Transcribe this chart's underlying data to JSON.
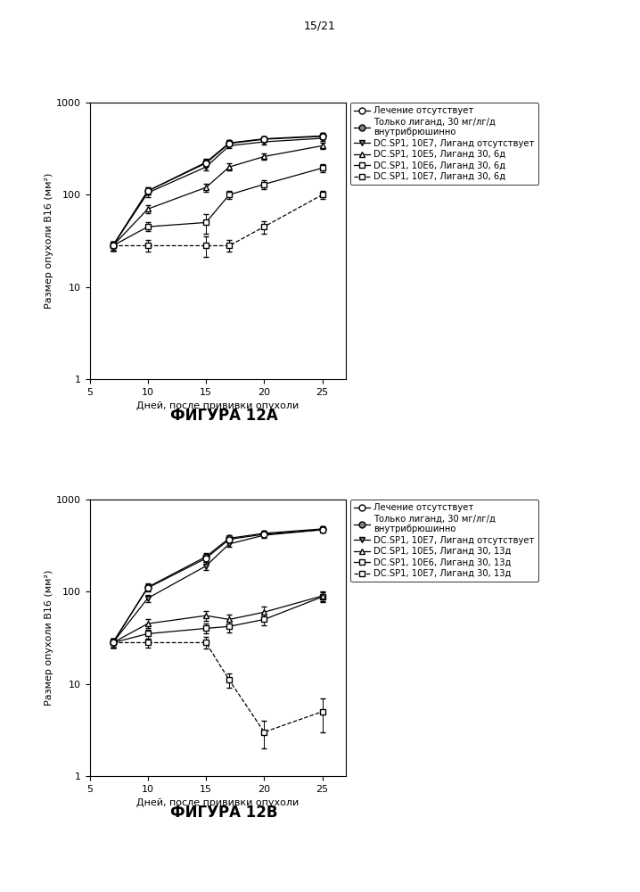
{
  "page_header": "15/21",
  "fig_label_A": "ФИГУРА 12А",
  "fig_label_B": "ФИГУРА 12B",
  "xlabel": "Дней, после прививки опухоли",
  "ylabel": "Размер опухоли В16 (мм²)",
  "days": [
    7,
    10,
    15,
    17,
    20,
    25
  ],
  "chartA": {
    "series": [
      {
        "label": "Лечение отсутствует",
        "marker": "o",
        "mfc": "white",
        "ls": "-",
        "y": [
          28,
          110,
          220,
          360,
          400,
          430
        ],
        "yerr": [
          3,
          10,
          20,
          25,
          28,
          30
        ]
      },
      {
        "label": "Только лиганд, 30 мг/лг/д\nвнутрибрюшинно",
        "marker": "o",
        "mfc": "gray",
        "ls": "-",
        "y": [
          28,
          110,
          225,
          365,
          405,
          435
        ],
        "yerr": [
          3,
          10,
          20,
          25,
          28,
          30
        ]
      },
      {
        "label": "DC.SP1, 10Е7, Лиганд отсутствует",
        "marker": "v",
        "mfc": "gray",
        "ls": "-",
        "y": [
          28,
          105,
          200,
          340,
          375,
          410
        ],
        "yerr": [
          3,
          10,
          18,
          22,
          26,
          28
        ]
      },
      {
        "label": "DC.SP1, 10Е5, Лиганд 30, 6д",
        "marker": "^",
        "mfc": "white",
        "ls": "-",
        "y": [
          28,
          70,
          120,
          200,
          260,
          340
        ],
        "yerr": [
          3,
          7,
          12,
          18,
          22,
          28
        ]
      },
      {
        "label": "DC.SP1, 10Е6, Лиганд 30, 6д",
        "marker": "s",
        "mfc": "white",
        "ls": "-",
        "y": [
          28,
          45,
          50,
          100,
          130,
          195
        ],
        "yerr": [
          3,
          5,
          12,
          10,
          14,
          18
        ]
      },
      {
        "label": "DC.SP1, 10Е7, Лиганд 30, 6д",
        "marker": "s",
        "mfc": "white",
        "ls": "-",
        "dashed": true,
        "y": [
          28,
          28,
          28,
          28,
          45,
          100
        ],
        "yerr": [
          3,
          4,
          7,
          4,
          7,
          10
        ]
      }
    ]
  },
  "chartB": {
    "series": [
      {
        "label": "Лечение отсутствует",
        "marker": "o",
        "mfc": "white",
        "ls": "-",
        "y": [
          28,
          110,
          230,
          370,
          420,
          470
        ],
        "yerr": [
          3,
          10,
          20,
          28,
          30,
          32
        ]
      },
      {
        "label": "Только лиганд, 30 мг/лг/д\nвнутрибрюшинно",
        "marker": "o",
        "mfc": "gray",
        "ls": "-",
        "y": [
          28,
          112,
          240,
          380,
          430,
          480
        ],
        "yerr": [
          3,
          10,
          20,
          28,
          30,
          32
        ]
      },
      {
        "label": "DC.SP1, 10Е7, Лиганд отсутствует",
        "marker": "v",
        "mfc": "gray",
        "ls": "-",
        "y": [
          28,
          85,
          190,
          330,
          410,
          470
        ],
        "yerr": [
          3,
          8,
          18,
          26,
          28,
          30
        ]
      },
      {
        "label": "DC.SP1, 10Е5, Лиганд 30, 13д",
        "marker": "^",
        "mfc": "white",
        "ls": "-",
        "y": [
          28,
          45,
          55,
          50,
          60,
          90
        ],
        "yerr": [
          3,
          5,
          7,
          7,
          9,
          11
        ]
      },
      {
        "label": "DC.SP1, 10Е6, Лиганд 30, 13д",
        "marker": "s",
        "mfc": "white",
        "ls": "-",
        "y": [
          28,
          35,
          40,
          42,
          50,
          88
        ],
        "yerr": [
          3,
          4,
          5,
          6,
          7,
          11
        ]
      },
      {
        "label": "DC.SP1, 10Е7, Лиганд 30, 13д",
        "marker": "s",
        "mfc": "white",
        "ls": "-",
        "dashed": true,
        "y": [
          28,
          28,
          28,
          11,
          3,
          5
        ],
        "yerr": [
          3,
          3,
          4,
          2,
          1,
          2
        ]
      }
    ]
  },
  "background_color": "#ffffff",
  "font_size": 8,
  "legend_font_size": 7.2,
  "title_font_size": 12
}
